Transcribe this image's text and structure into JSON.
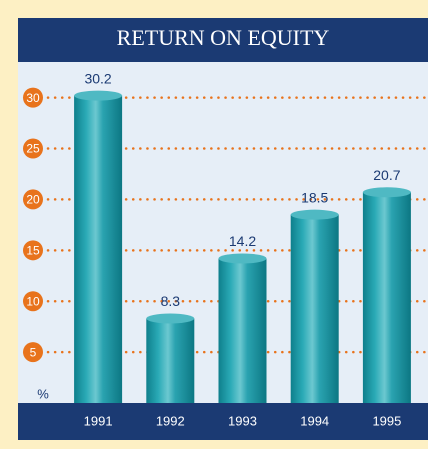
{
  "chart_data": {
    "type": "bar",
    "title": "RETURN ON EQUITY",
    "y_label": "%",
    "categories": [
      "1991",
      "1992",
      "1993",
      "1994",
      "1995"
    ],
    "values": [
      30.2,
      8.3,
      14.2,
      18.5,
      20.7
    ],
    "color": "#1a98a6",
    "ylim": [
      0,
      33.5
    ],
    "yticks": [
      5,
      10,
      15,
      20,
      25,
      30
    ],
    "grid": true
  }
}
